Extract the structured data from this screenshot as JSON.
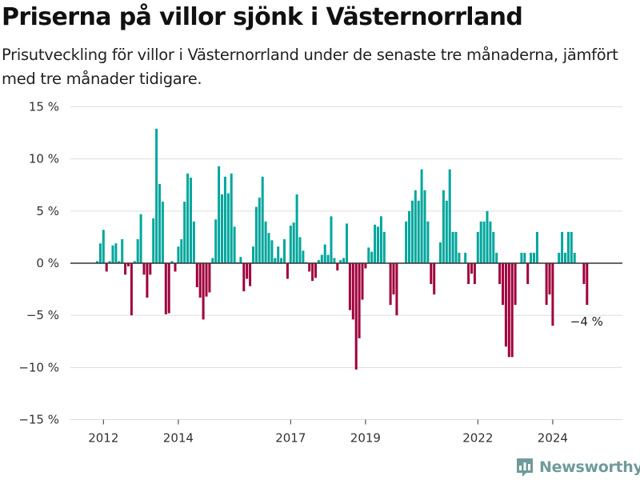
{
  "header": {
    "title": "Priserna på villor sjönk i Västernorrland",
    "subtitle": "Prisutveckling för villor i Västernorrland under de senaste tre månaderna, jämfört med tre månader tidigare."
  },
  "brand": {
    "name": "Newsworthy",
    "icon": "bar-chart-logo-icon"
  },
  "colors": {
    "positive": "#00a69c",
    "negative": "#a0003c",
    "grid": "#dddddd",
    "zero": "#333333",
    "brand": "#6f9b9b"
  },
  "chart_data": {
    "type": "bar",
    "frequency": "monthly",
    "x_start": "2011-11",
    "x_end": "2024-12",
    "x_ticks": [
      {
        "label": "2012",
        "date": "2012-01"
      },
      {
        "label": "2014",
        "date": "2014-01"
      },
      {
        "label": "2017",
        "date": "2017-01"
      },
      {
        "label": "2019",
        "date": "2019-01"
      },
      {
        "label": "2022",
        "date": "2022-01"
      },
      {
        "label": "2024",
        "date": "2024-01"
      }
    ],
    "ylim": [
      -15,
      15
    ],
    "y_ticks": [
      {
        "value": 15,
        "label": "15 %"
      },
      {
        "value": 10,
        "label": "10 %"
      },
      {
        "value": 5,
        "label": "5 %"
      },
      {
        "value": 0,
        "label": "0 %"
      },
      {
        "value": -5,
        "label": "−5 %"
      },
      {
        "value": -10,
        "label": "−10 %"
      },
      {
        "value": -15,
        "label": "−15 %"
      }
    ],
    "grid": true,
    "annotation": {
      "label": "−4 %",
      "date": "2024-12",
      "value": -4
    },
    "points": [
      {
        "date": "2011-11",
        "value": 0.2
      },
      {
        "date": "2011-12",
        "value": 1.9
      },
      {
        "date": "2012-01",
        "value": 3.2
      },
      {
        "date": "2012-02",
        "value": -0.8
      },
      {
        "date": "2012-03",
        "value": 0.2
      },
      {
        "date": "2012-04",
        "value": 1.7
      },
      {
        "date": "2012-05",
        "value": 1.9
      },
      {
        "date": "2012-06",
        "value": 0.2
      },
      {
        "date": "2012-07",
        "value": 2.3
      },
      {
        "date": "2012-08",
        "value": -1.1
      },
      {
        "date": "2012-09",
        "value": -0.3
      },
      {
        "date": "2012-10",
        "value": -5.0
      },
      {
        "date": "2012-11",
        "value": 0.2
      },
      {
        "date": "2012-12",
        "value": 2.3
      },
      {
        "date": "2013-01",
        "value": 4.7
      },
      {
        "date": "2013-02",
        "value": -1.1
      },
      {
        "date": "2013-03",
        "value": -3.3
      },
      {
        "date": "2013-04",
        "value": -1.1
      },
      {
        "date": "2013-05",
        "value": 4.3
      },
      {
        "date": "2013-06",
        "value": 12.9
      },
      {
        "date": "2013-07",
        "value": 7.6
      },
      {
        "date": "2013-08",
        "value": 5.9
      },
      {
        "date": "2013-09",
        "value": -4.9
      },
      {
        "date": "2013-10",
        "value": -4.8
      },
      {
        "date": "2013-11",
        "value": 0.2
      },
      {
        "date": "2013-12",
        "value": -0.8
      },
      {
        "date": "2014-01",
        "value": 1.6
      },
      {
        "date": "2014-02",
        "value": 2.3
      },
      {
        "date": "2014-03",
        "value": 5.9
      },
      {
        "date": "2014-04",
        "value": 8.6
      },
      {
        "date": "2014-05",
        "value": 8.2
      },
      {
        "date": "2014-06",
        "value": 4.0
      },
      {
        "date": "2014-07",
        "value": -2.3
      },
      {
        "date": "2014-08",
        "value": -3.3
      },
      {
        "date": "2014-09",
        "value": -5.4
      },
      {
        "date": "2014-10",
        "value": -3.2
      },
      {
        "date": "2014-11",
        "value": -2.8
      },
      {
        "date": "2014-12",
        "value": 0.5
      },
      {
        "date": "2015-01",
        "value": 4.2
      },
      {
        "date": "2015-02",
        "value": 9.3
      },
      {
        "date": "2015-03",
        "value": 6.6
      },
      {
        "date": "2015-04",
        "value": 8.3
      },
      {
        "date": "2015-05",
        "value": 6.7
      },
      {
        "date": "2015-06",
        "value": 8.6
      },
      {
        "date": "2015-07",
        "value": 3.5
      },
      {
        "date": "2015-08",
        "value": 0.1
      },
      {
        "date": "2015-09",
        "value": 0.6
      },
      {
        "date": "2015-10",
        "value": -2.7
      },
      {
        "date": "2015-11",
        "value": -1.5
      },
      {
        "date": "2015-12",
        "value": -2.2
      },
      {
        "date": "2016-01",
        "value": 1.6
      },
      {
        "date": "2016-02",
        "value": 5.4
      },
      {
        "date": "2016-03",
        "value": 6.3
      },
      {
        "date": "2016-04",
        "value": 8.3
      },
      {
        "date": "2016-05",
        "value": 4.0
      },
      {
        "date": "2016-06",
        "value": 2.9
      },
      {
        "date": "2016-07",
        "value": 2.2
      },
      {
        "date": "2016-08",
        "value": 0.5
      },
      {
        "date": "2016-09",
        "value": 1.6
      },
      {
        "date": "2016-10",
        "value": 0.5
      },
      {
        "date": "2016-11",
        "value": 2.3
      },
      {
        "date": "2016-12",
        "value": -1.5
      },
      {
        "date": "2017-01",
        "value": 3.6
      },
      {
        "date": "2017-02",
        "value": 3.9
      },
      {
        "date": "2017-03",
        "value": 6.6
      },
      {
        "date": "2017-04",
        "value": 2.5
      },
      {
        "date": "2017-05",
        "value": 1.2
      },
      {
        "date": "2017-06",
        "value": 0.1
      },
      {
        "date": "2017-07",
        "value": -0.8
      },
      {
        "date": "2017-08",
        "value": -1.7
      },
      {
        "date": "2017-09",
        "value": -1.4
      },
      {
        "date": "2017-10",
        "value": 0.3
      },
      {
        "date": "2017-11",
        "value": 0.8
      },
      {
        "date": "2017-12",
        "value": 1.8
      },
      {
        "date": "2018-01",
        "value": 0.8
      },
      {
        "date": "2018-02",
        "value": 4.5
      },
      {
        "date": "2018-03",
        "value": 0.5
      },
      {
        "date": "2018-04",
        "value": -0.7
      },
      {
        "date": "2018-05",
        "value": 0.3
      },
      {
        "date": "2018-06",
        "value": 0.5
      },
      {
        "date": "2018-07",
        "value": 3.8
      },
      {
        "date": "2018-08",
        "value": -4.5
      },
      {
        "date": "2018-09",
        "value": -5.4
      },
      {
        "date": "2018-10",
        "value": -10.2
      },
      {
        "date": "2018-11",
        "value": -7.2
      },
      {
        "date": "2018-12",
        "value": -3.5
      },
      {
        "date": "2019-01",
        "value": -0.5
      },
      {
        "date": "2019-02",
        "value": 1.5
      },
      {
        "date": "2019-03",
        "value": 1.1
      },
      {
        "date": "2019-04",
        "value": 3.7
      },
      {
        "date": "2019-05",
        "value": 3.5
      },
      {
        "date": "2019-06",
        "value": 4.5
      },
      {
        "date": "2019-07",
        "value": 3.0
      },
      {
        "date": "2019-08",
        "value": 0.0
      },
      {
        "date": "2019-09",
        "value": -4.0
      },
      {
        "date": "2019-10",
        "value": -3.0
      },
      {
        "date": "2019-11",
        "value": -5.0
      },
      {
        "date": "2019-12",
        "value": 0.0
      },
      {
        "date": "2020-01",
        "value": 0.0
      },
      {
        "date": "2020-02",
        "value": 4.0
      },
      {
        "date": "2020-03",
        "value": 5.0
      },
      {
        "date": "2020-04",
        "value": 6.0
      },
      {
        "date": "2020-05",
        "value": 7.0
      },
      {
        "date": "2020-06",
        "value": 6.0
      },
      {
        "date": "2020-07",
        "value": 9.0
      },
      {
        "date": "2020-08",
        "value": 7.0
      },
      {
        "date": "2020-09",
        "value": 4.0
      },
      {
        "date": "2020-10",
        "value": -2.0
      },
      {
        "date": "2020-11",
        "value": -3.0
      },
      {
        "date": "2020-12",
        "value": 0.0
      },
      {
        "date": "2021-01",
        "value": 2.0
      },
      {
        "date": "2021-02",
        "value": 7.0
      },
      {
        "date": "2021-03",
        "value": 6.0
      },
      {
        "date": "2021-04",
        "value": 9.0
      },
      {
        "date": "2021-05",
        "value": 3.0
      },
      {
        "date": "2021-06",
        "value": 3.0
      },
      {
        "date": "2021-07",
        "value": 1.0
      },
      {
        "date": "2021-08",
        "value": 0.0
      },
      {
        "date": "2021-09",
        "value": 1.0
      },
      {
        "date": "2021-10",
        "value": -2.0
      },
      {
        "date": "2021-11",
        "value": -1.0
      },
      {
        "date": "2021-12",
        "value": -2.0
      },
      {
        "date": "2022-01",
        "value": 3.0
      },
      {
        "date": "2022-02",
        "value": 4.0
      },
      {
        "date": "2022-03",
        "value": 4.0
      },
      {
        "date": "2022-04",
        "value": 5.0
      },
      {
        "date": "2022-05",
        "value": 4.0
      },
      {
        "date": "2022-06",
        "value": 3.0
      },
      {
        "date": "2022-07",
        "value": 1.0
      },
      {
        "date": "2022-08",
        "value": -2.0
      },
      {
        "date": "2022-09",
        "value": -4.0
      },
      {
        "date": "2022-10",
        "value": -8.0
      },
      {
        "date": "2022-11",
        "value": -9.0
      },
      {
        "date": "2022-12",
        "value": -9.0
      },
      {
        "date": "2023-01",
        "value": -4.0
      },
      {
        "date": "2023-02",
        "value": 0.0
      },
      {
        "date": "2023-03",
        "value": 1.0
      },
      {
        "date": "2023-04",
        "value": 1.0
      },
      {
        "date": "2023-05",
        "value": -2.0
      },
      {
        "date": "2023-06",
        "value": 1.0
      },
      {
        "date": "2023-07",
        "value": 1.0
      },
      {
        "date": "2023-08",
        "value": 3.0
      },
      {
        "date": "2023-09",
        "value": 0.0
      },
      {
        "date": "2023-10",
        "value": 0.0
      },
      {
        "date": "2023-11",
        "value": -4.0
      },
      {
        "date": "2023-12",
        "value": -3.0
      },
      {
        "date": "2024-01",
        "value": -6.0
      },
      {
        "date": "2024-02",
        "value": 0.0
      },
      {
        "date": "2024-03",
        "value": 1.0
      },
      {
        "date": "2024-04",
        "value": 3.0
      },
      {
        "date": "2024-05",
        "value": 1.0
      },
      {
        "date": "2024-06",
        "value": 3.0
      },
      {
        "date": "2024-07",
        "value": 3.0
      },
      {
        "date": "2024-08",
        "value": 1.0
      },
      {
        "date": "2024-09",
        "value": 0.0
      },
      {
        "date": "2024-10",
        "value": 0.0
      },
      {
        "date": "2024-11",
        "value": -2.0
      },
      {
        "date": "2024-12",
        "value": -4.0
      }
    ]
  }
}
